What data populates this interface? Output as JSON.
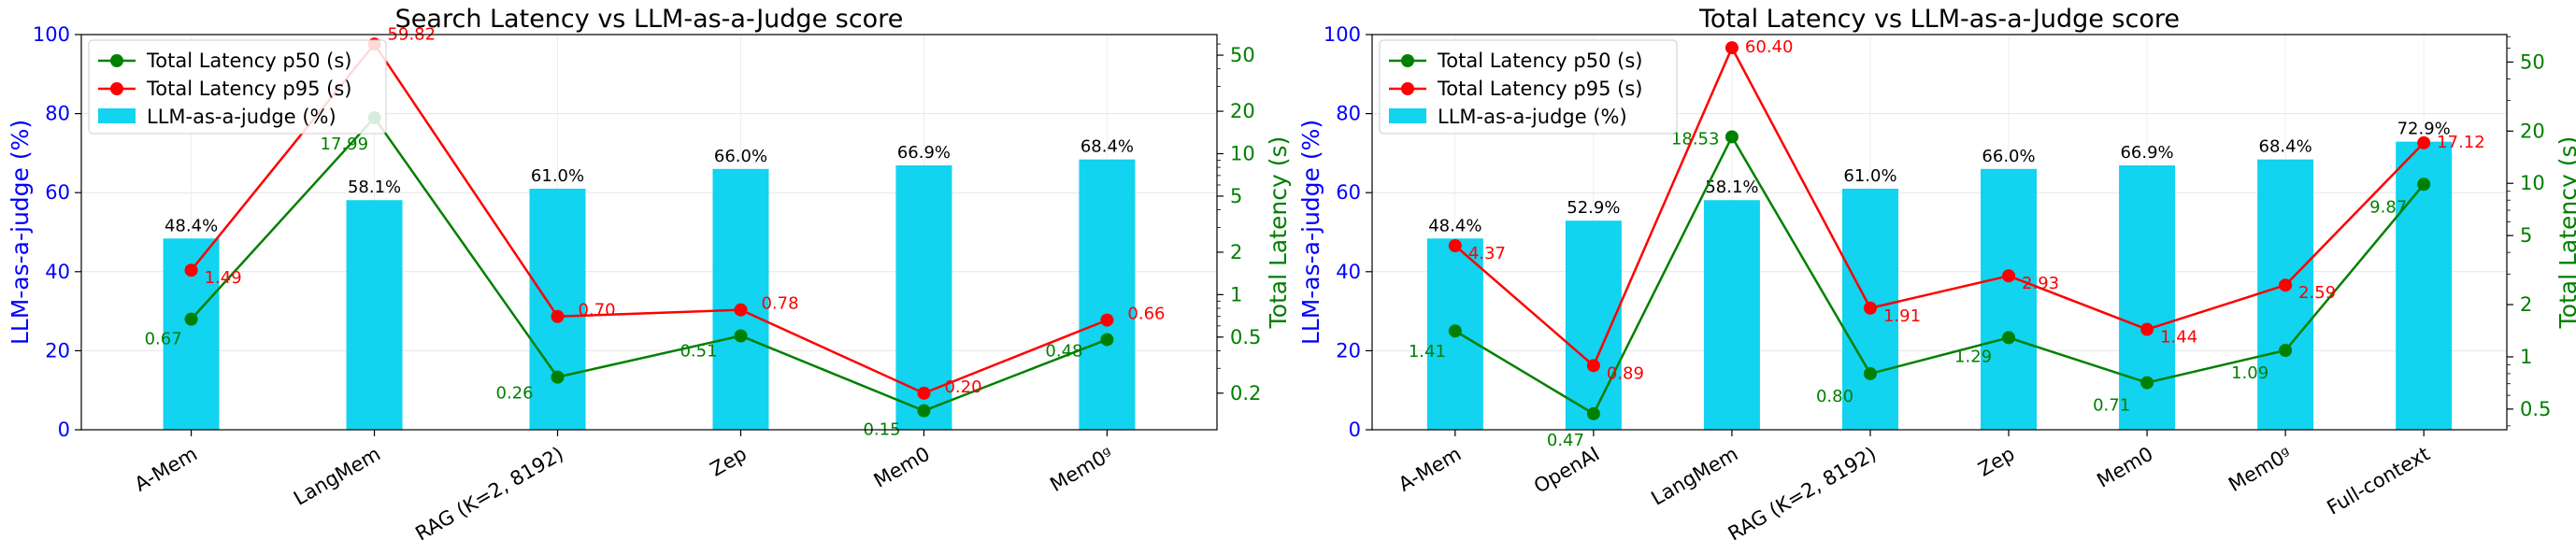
{
  "colors": {
    "bar": "#12d3f0",
    "p50": "#008000",
    "p95": "#ff0000",
    "left_axis": "#0000ff",
    "right_axis": "#008000"
  },
  "chart_data": [
    {
      "type": "bar",
      "title": "Search Latency vs LLM-as-a-Judge score",
      "ylabel": "LLM-as-a-judge (%)",
      "y2label": "Total Latency (s)",
      "ylim": [
        0,
        100
      ],
      "y2scale": "log",
      "y2lim": [
        0.11,
        70
      ],
      "y2ticks": [
        0.2,
        0.5,
        1,
        2,
        5,
        10,
        20,
        50
      ],
      "legend_position": "top-left",
      "categories": [
        "A-Mem",
        "LangMem",
        "RAG (K=2, 8192)",
        "Zep",
        "Mem0",
        "Mem0ᵍ"
      ],
      "series": [
        {
          "name": "LLM-as-a-judge (%)",
          "kind": "bar",
          "values": [
            48.4,
            58.1,
            61.0,
            66.0,
            66.9,
            68.4
          ],
          "labels": [
            "48.4%",
            "58.1%",
            "61.0%",
            "66.0%",
            "66.9%",
            "68.4%"
          ]
        },
        {
          "name": "Total Latency p50 (s)",
          "kind": "line",
          "axis": "right",
          "values": [
            0.67,
            17.99,
            0.26,
            0.51,
            0.15,
            0.48
          ],
          "labels": [
            "0.67",
            "17.99",
            "0.26",
            "0.51",
            "0.15",
            "0.48"
          ]
        },
        {
          "name": "Total Latency p95 (s)",
          "kind": "line",
          "axis": "right",
          "values": [
            1.49,
            59.82,
            0.7,
            0.78,
            0.2,
            0.66
          ],
          "labels": [
            "1.49",
            "59.82",
            "0.70",
            "0.78",
            "0.20",
            "0.66"
          ]
        }
      ]
    },
    {
      "type": "bar",
      "title": "Total Latency vs LLM-as-a-Judge score",
      "ylabel": "LLM-as-a-judge (%)",
      "y2label": "Total Latency (s)",
      "ylim": [
        0,
        100
      ],
      "y2scale": "log",
      "y2lim": [
        0.38,
        72
      ],
      "y2ticks": [
        0.5,
        1,
        2,
        5,
        10,
        20,
        50
      ],
      "legend_position": "top-left",
      "categories": [
        "A-Mem",
        "OpenAI",
        "LangMem",
        "RAG (K=2, 8192)",
        "Zep",
        "Mem0",
        "Mem0ᵍ",
        "Full-context"
      ],
      "series": [
        {
          "name": "LLM-as-a-judge (%)",
          "kind": "bar",
          "values": [
            48.4,
            52.9,
            58.1,
            61.0,
            66.0,
            66.9,
            68.4,
            72.9
          ],
          "labels": [
            "48.4%",
            "52.9%",
            "58.1%",
            "61.0%",
            "66.0%",
            "66.9%",
            "68.4%",
            "72.9%"
          ]
        },
        {
          "name": "Total Latency p50 (s)",
          "kind": "line",
          "axis": "right",
          "values": [
            1.41,
            0.47,
            18.53,
            0.8,
            1.29,
            0.71,
            1.09,
            9.87
          ],
          "labels": [
            "1.41",
            "0.47",
            "18.53",
            "0.80",
            "1.29",
            "0.71",
            "1.09",
            "9.87"
          ]
        },
        {
          "name": "Total Latency p95 (s)",
          "kind": "line",
          "axis": "right",
          "values": [
            4.37,
            0.89,
            60.4,
            1.91,
            2.93,
            1.44,
            2.59,
            17.12
          ],
          "labels": [
            "4.37",
            "0.89",
            "60.40",
            "1.91",
            "2.93",
            "1.44",
            "2.59",
            "17.12"
          ]
        }
      ]
    }
  ]
}
